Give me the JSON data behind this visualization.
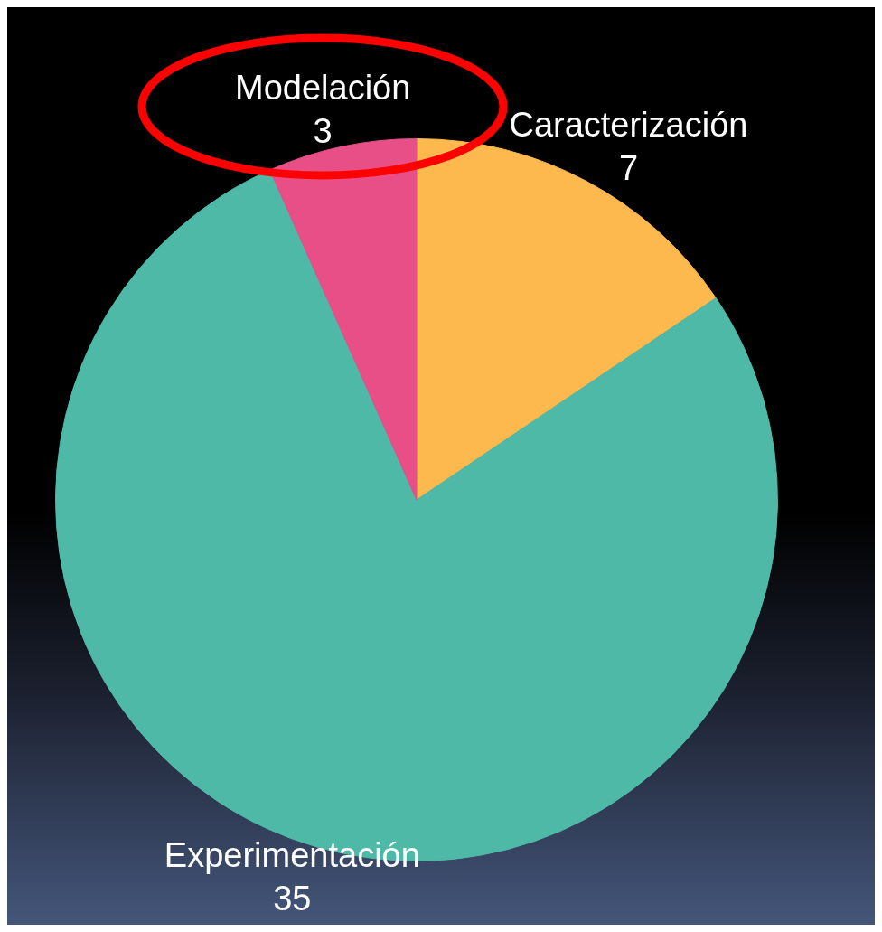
{
  "chart_data": {
    "type": "pie",
    "categories": [
      "Caracterización",
      "Experimentación",
      "Modelación"
    ],
    "values": [
      7,
      35,
      3
    ],
    "colors": [
      "#fdb94e",
      "#4fb9a8",
      "#e84f86"
    ],
    "data_labels": true,
    "legend": false
  }
}
